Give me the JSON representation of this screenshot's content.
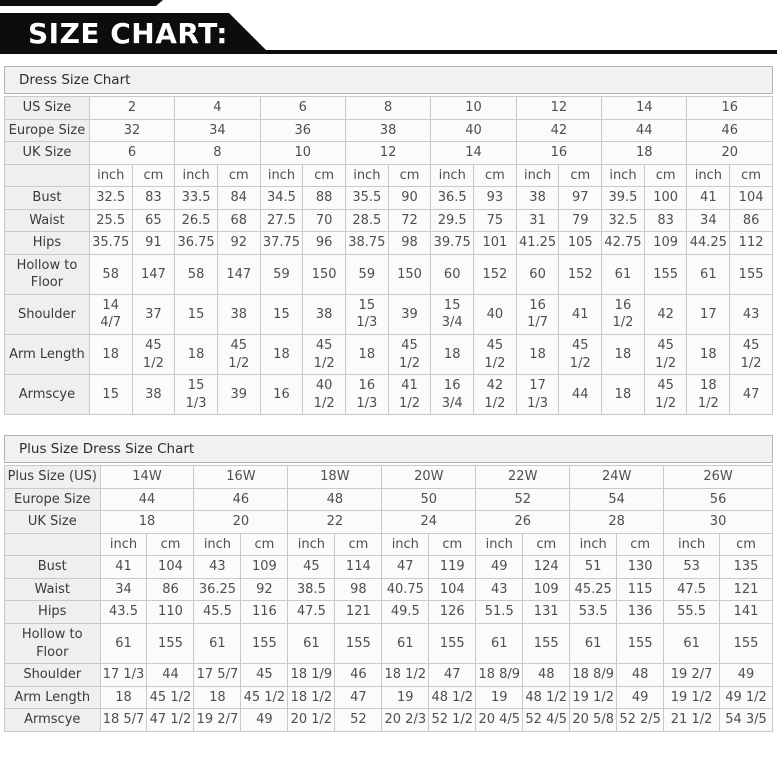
{
  "banner": {
    "title": "SIZE CHART:",
    "bg_color": "#0d0d0d",
    "text_color": "#ffffff"
  },
  "tables": [
    {
      "title": "Dress Size Chart",
      "unit_labels": [
        "inch",
        "cm"
      ],
      "size_rows": [
        {
          "label": "US Size",
          "values": [
            "2",
            "4",
            "6",
            "8",
            "10",
            "12",
            "14",
            "16"
          ]
        },
        {
          "label": "Europe Size",
          "values": [
            "32",
            "34",
            "36",
            "38",
            "40",
            "42",
            "44",
            "46"
          ]
        },
        {
          "label": "UK Size",
          "values": [
            "6",
            "8",
            "10",
            "12",
            "14",
            "16",
            "18",
            "20"
          ]
        }
      ],
      "measure_rows": [
        {
          "label": "Bust",
          "values": [
            "32.5",
            "83",
            "33.5",
            "84",
            "34.5",
            "88",
            "35.5",
            "90",
            "36.5",
            "93",
            "38",
            "97",
            "39.5",
            "100",
            "41",
            "104"
          ]
        },
        {
          "label": "Waist",
          "values": [
            "25.5",
            "65",
            "26.5",
            "68",
            "27.5",
            "70",
            "28.5",
            "72",
            "29.5",
            "75",
            "31",
            "79",
            "32.5",
            "83",
            "34",
            "86"
          ]
        },
        {
          "label": "Hips",
          "values": [
            "35.75",
            "91",
            "36.75",
            "92",
            "37.75",
            "96",
            "38.75",
            "98",
            "39.75",
            "101",
            "41.25",
            "105",
            "42.75",
            "109",
            "44.25",
            "112"
          ]
        },
        {
          "label": "Hollow to Floor",
          "values": [
            "58",
            "147",
            "58",
            "147",
            "59",
            "150",
            "59",
            "150",
            "60",
            "152",
            "60",
            "152",
            "61",
            "155",
            "61",
            "155"
          ]
        },
        {
          "label": "Shoulder",
          "values": [
            "14 4/7",
            "37",
            "15",
            "38",
            "15",
            "38",
            "15 1/3",
            "39",
            "15 3/4",
            "40",
            "16 1/7",
            "41",
            "16 1/2",
            "42",
            "17",
            "43"
          ]
        },
        {
          "label": "Arm Length",
          "values": [
            "18",
            "45 1/2",
            "18",
            "45 1/2",
            "18",
            "45 1/2",
            "18",
            "45 1/2",
            "18",
            "45 1/2",
            "18",
            "45 1/2",
            "18",
            "45 1/2",
            "18",
            "45 1/2"
          ]
        },
        {
          "label": "Armscye",
          "values": [
            "15",
            "38",
            "15 1/3",
            "39",
            "16",
            "40 1/2",
            "16 1/3",
            "41 1/2",
            "16 3/4",
            "42 1/2",
            "17 1/3",
            "44",
            "18",
            "45 1/2",
            "18 1/2",
            "47"
          ]
        }
      ]
    },
    {
      "title": "Plus Size Dress Size Chart",
      "unit_labels": [
        "inch",
        "cm"
      ],
      "size_rows": [
        {
          "label": "Plus Size (US)",
          "values": [
            "14W",
            "16W",
            "18W",
            "20W",
            "22W",
            "24W",
            "26W"
          ]
        },
        {
          "label": "Europe Size",
          "values": [
            "44",
            "46",
            "48",
            "50",
            "52",
            "54",
            "56"
          ]
        },
        {
          "label": "UK Size",
          "values": [
            "18",
            "20",
            "22",
            "24",
            "26",
            "28",
            "30"
          ]
        }
      ],
      "measure_rows": [
        {
          "label": "Bust",
          "values": [
            "41",
            "104",
            "43",
            "109",
            "45",
            "114",
            "47",
            "119",
            "49",
            "124",
            "51",
            "130",
            "53",
            "135"
          ]
        },
        {
          "label": "Waist",
          "values": [
            "34",
            "86",
            "36.25",
            "92",
            "38.5",
            "98",
            "40.75",
            "104",
            "43",
            "109",
            "45.25",
            "115",
            "47.5",
            "121"
          ]
        },
        {
          "label": "Hips",
          "values": [
            "43.5",
            "110",
            "45.5",
            "116",
            "47.5",
            "121",
            "49.5",
            "126",
            "51.5",
            "131",
            "53.5",
            "136",
            "55.5",
            "141"
          ]
        },
        {
          "label": "Hollow to Floor",
          "values": [
            "61",
            "155",
            "61",
            "155",
            "61",
            "155",
            "61",
            "155",
            "61",
            "155",
            "61",
            "155",
            "61",
            "155"
          ]
        },
        {
          "label": "Shoulder",
          "values": [
            "17 1/3",
            "44",
            "17 5/7",
            "45",
            "18 1/9",
            "46",
            "18 1/2",
            "47",
            "18 8/9",
            "48",
            "18 8/9",
            "48",
            "19 2/7",
            "49"
          ]
        },
        {
          "label": "Arm Length",
          "values": [
            "18",
            "45 1/2",
            "18",
            "45 1/2",
            "18 1/2",
            "47",
            "19",
            "48 1/2",
            "19",
            "48 1/2",
            "19 1/2",
            "49",
            "19 1/2",
            "49 1/2"
          ]
        },
        {
          "label": "Armscye",
          "values": [
            "18 5/7",
            "47 1/2",
            "19 2/7",
            "49",
            "20 1/2",
            "52",
            "20 2/3",
            "52 1/2",
            "20 4/5",
            "52 4/5",
            "20 5/8",
            "52 2/5",
            "21 1/2",
            "54 3/5"
          ]
        }
      ]
    }
  ],
  "colors": {
    "banner_bg": "#0d0d0d",
    "banner_text": "#ffffff",
    "title_bar_bg": "#f1f1f1",
    "label_cell_bg": "#efefef",
    "data_cell_bg": "#fbfbfb",
    "border": "#c9c9c9",
    "text": "#4f4f4f"
  }
}
